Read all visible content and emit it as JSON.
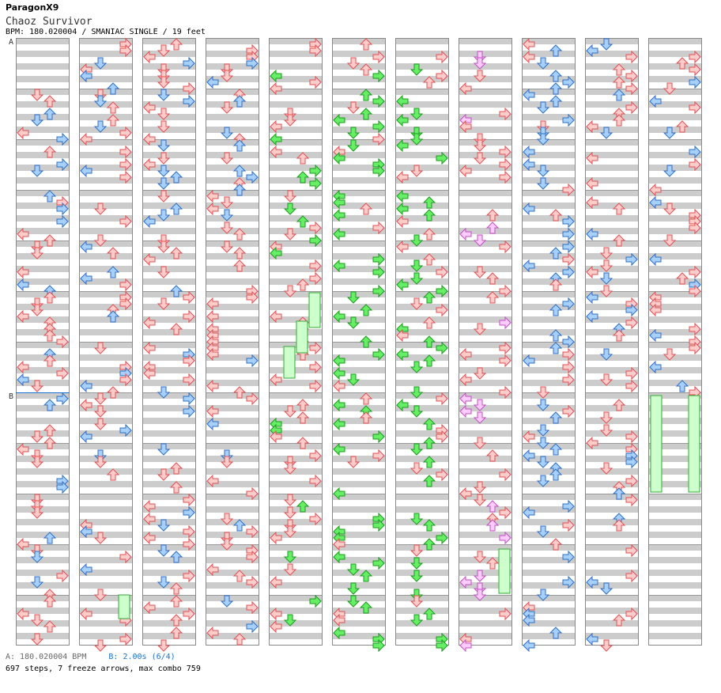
{
  "header": {
    "author": "ParagonX9",
    "song_title": "Chaoz Survivor",
    "meta": "BPM: 180.020004 / SMANIAC SINGLE / 19 feet"
  },
  "markers": {
    "a_label": "A",
    "b_label": "B"
  },
  "footer": {
    "bpm_text": "A: 180.020004 BPM",
    "stop_text": "B: 2.00s (6/4)",
    "stats": "697 steps, 7 freeze arrows, max combo 759"
  },
  "colors": {
    "red_fill": "#ffcccc",
    "red_stroke": "#e05050",
    "blue_fill": "#a8d0ff",
    "blue_stroke": "#2f6fc0",
    "green_fill": "#66ee66",
    "green_stroke": "#1c9a1c",
    "pink_fill": "#ffccff",
    "pink_stroke": "#c050c0",
    "freeze_fill": "#ccffcc",
    "freeze_stroke": "#33aa33",
    "band": "#cccccc",
    "border": "#888888"
  },
  "chart_data": {
    "type": "table",
    "columns": 11,
    "measures_per_column": 12,
    "total_measures": 132,
    "lanes": [
      "left",
      "down",
      "up",
      "right"
    ],
    "steps": 697,
    "freeze_arrows": 7,
    "max_combo": 759,
    "bpm": 180.020004,
    "stop": "2.00s (6/4)",
    "column_palette": [
      "red-blue",
      "red-blue",
      "red-blue",
      "red-blue",
      "red-green",
      "green-red",
      "green-red",
      "red-pink",
      "blue-red",
      "red-blue",
      "red-blue"
    ]
  }
}
